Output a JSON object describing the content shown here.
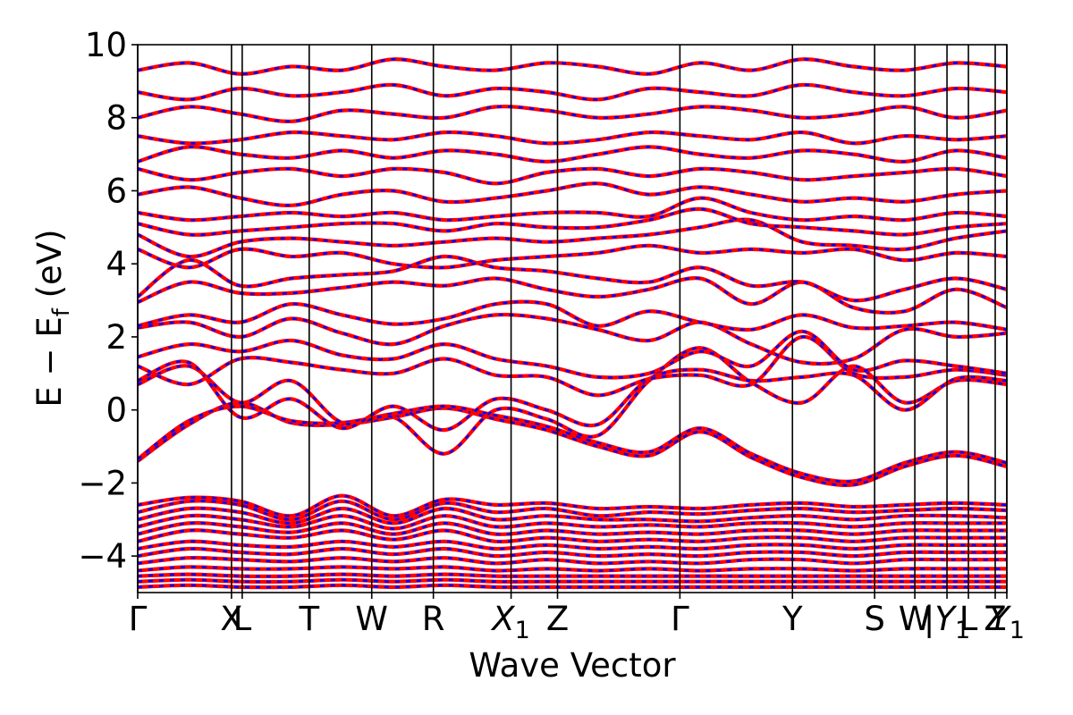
{
  "chart_data": {
    "type": "line",
    "title": "",
    "xlabel": "Wave Vector",
    "ylabel_parts": [
      "E − E",
      "f",
      " (eV)"
    ],
    "ylim": [
      -5,
      10
    ],
    "y_ticks": [
      10,
      8,
      6,
      4,
      2,
      0,
      -2,
      -4
    ],
    "y_tick_labels": [
      "10",
      "8",
      "6",
      "4",
      "2",
      "0",
      "−2",
      "−4"
    ],
    "x_range": [
      0,
      9.73
    ],
    "kpoints": [
      {
        "x": 0.0,
        "label": "Γ"
      },
      {
        "x": 1.05,
        "label": "X"
      },
      {
        "x": 1.17,
        "label": "L"
      },
      {
        "x": 1.92,
        "label": "T"
      },
      {
        "x": 2.62,
        "label": "W"
      },
      {
        "x": 3.31,
        "label": "R"
      },
      {
        "x": 4.18,
        "label": "X",
        "sub": "1"
      },
      {
        "x": 4.7,
        "label": "Z"
      },
      {
        "x": 6.07,
        "label": "Γ"
      },
      {
        "x": 7.33,
        "label": "Y"
      },
      {
        "x": 8.25,
        "label": "S"
      },
      {
        "x": 8.7,
        "label": "W"
      },
      {
        "x": 9.06,
        "label": "|Y",
        "sub": "1"
      },
      {
        "x": 9.3,
        "label": "L"
      },
      {
        "x": 9.6,
        "label": "Z"
      },
      {
        "x": 9.73,
        "label": "Y",
        "sub": "1"
      }
    ],
    "series": [
      {
        "style": "solid",
        "color": "#ff0000"
      },
      {
        "style": "dashed",
        "color": "#0000ff"
      }
    ],
    "bands": [
      {
        "y": [
          -1.4,
          -0.4,
          0.2,
          -0.35,
          -0.4,
          -0.2,
          0.05,
          -0.25,
          -0.55,
          -1.0,
          -1.25,
          -0.6,
          -1.3,
          -1.85,
          -2.05,
          -1.55,
          -1.25,
          -1.55
        ]
      },
      {
        "y": [
          -1.35,
          -0.3,
          0.1,
          -0.3,
          -0.35,
          -0.1,
          0.1,
          -0.15,
          -0.45,
          -0.9,
          -1.15,
          -0.5,
          -1.2,
          -1.75,
          -1.95,
          -1.45,
          -1.15,
          -1.45
        ]
      },
      {
        "y": [
          0.7,
          1.2,
          0.2,
          0.8,
          -0.35,
          -0.2,
          -1.2,
          0.0,
          -0.25,
          -0.7,
          0.8,
          1.7,
          0.75,
          0.2,
          1.2,
          0.2,
          0.8,
          0.7
        ]
      },
      {
        "y": [
          0.8,
          1.3,
          -0.2,
          0.3,
          -0.5,
          0.1,
          -0.55,
          0.3,
          0.0,
          -0.4,
          0.85,
          1.1,
          0.8,
          0.9,
          0.95,
          0.0,
          0.85,
          0.8
        ]
      },
      {
        "y": [
          1.2,
          0.7,
          1.4,
          1.3,
          1.1,
          1.0,
          1.4,
          0.95,
          0.9,
          0.4,
          0.85,
          0.95,
          0.7,
          2.0,
          1.0,
          0.9,
          1.1,
          0.95
        ]
      },
      {
        "y": [
          1.45,
          1.8,
          1.6,
          1.9,
          1.5,
          1.4,
          1.8,
          1.4,
          1.2,
          0.9,
          1.0,
          1.6,
          1.2,
          2.15,
          1.1,
          1.35,
          1.2,
          1.0
        ]
      },
      {
        "y": [
          2.25,
          2.4,
          2.0,
          2.5,
          2.1,
          1.8,
          2.3,
          2.6,
          2.5,
          2.2,
          1.9,
          2.4,
          1.8,
          1.3,
          1.4,
          2.2,
          2.0,
          2.1
        ]
      },
      {
        "y": [
          2.3,
          2.6,
          2.4,
          2.9,
          2.6,
          2.35,
          2.5,
          2.9,
          2.9,
          2.3,
          2.7,
          2.4,
          2.2,
          2.6,
          2.25,
          2.3,
          2.4,
          2.2
        ]
      },
      {
        "y": [
          2.95,
          3.5,
          3.2,
          3.2,
          3.35,
          3.5,
          3.4,
          3.6,
          3.3,
          3.1,
          3.3,
          3.6,
          2.9,
          3.5,
          2.8,
          2.7,
          3.3,
          2.8
        ]
      },
      {
        "y": [
          3.1,
          4.1,
          3.4,
          3.6,
          3.7,
          3.8,
          4.2,
          3.9,
          3.8,
          3.6,
          3.5,
          3.9,
          3.4,
          3.5,
          3.0,
          3.3,
          3.6,
          3.3
        ]
      },
      {
        "y": [
          4.4,
          3.9,
          4.4,
          4.2,
          4.3,
          4.0,
          3.9,
          4.1,
          4.2,
          4.3,
          4.5,
          4.3,
          4.4,
          4.3,
          4.4,
          4.1,
          4.3,
          4.2
        ]
      },
      {
        "y": [
          4.8,
          4.2,
          4.6,
          4.7,
          4.6,
          4.5,
          4.6,
          4.7,
          4.6,
          4.7,
          4.8,
          5.0,
          5.2,
          4.6,
          4.5,
          4.4,
          4.7,
          4.9
        ]
      },
      {
        "y": [
          5.1,
          4.8,
          4.9,
          5.0,
          5.1,
          5.1,
          4.9,
          5.1,
          5.0,
          5.0,
          5.2,
          5.5,
          5.1,
          5.0,
          4.9,
          4.8,
          5.0,
          5.1
        ]
      },
      {
        "y": [
          5.4,
          5.2,
          5.3,
          5.4,
          5.3,
          5.4,
          5.2,
          5.3,
          5.4,
          5.4,
          5.3,
          5.8,
          5.4,
          5.2,
          5.3,
          5.2,
          5.4,
          5.3
        ]
      },
      {
        "y": [
          5.9,
          6.1,
          5.8,
          5.6,
          5.9,
          6.0,
          5.7,
          5.8,
          6.0,
          6.2,
          5.9,
          6.1,
          5.9,
          5.7,
          5.8,
          5.7,
          5.9,
          6.0
        ]
      },
      {
        "y": [
          6.6,
          6.3,
          6.5,
          6.6,
          6.4,
          6.6,
          6.5,
          6.2,
          6.5,
          6.6,
          6.4,
          6.6,
          6.5,
          6.3,
          6.4,
          6.5,
          6.6,
          6.4
        ]
      },
      {
        "y": [
          6.8,
          7.2,
          7.0,
          6.9,
          7.1,
          6.9,
          7.1,
          7.0,
          6.8,
          7.0,
          7.2,
          7.0,
          6.9,
          7.1,
          7.0,
          6.8,
          7.1,
          6.9
        ]
      },
      {
        "y": [
          7.5,
          7.3,
          7.4,
          7.6,
          7.5,
          7.4,
          7.6,
          7.5,
          7.3,
          7.4,
          7.6,
          7.5,
          7.4,
          7.6,
          7.3,
          7.5,
          7.4,
          7.5
        ]
      },
      {
        "y": [
          8.0,
          8.3,
          8.1,
          7.9,
          8.2,
          8.1,
          8.0,
          8.3,
          8.2,
          8.0,
          8.1,
          8.3,
          8.2,
          8.0,
          8.1,
          8.3,
          8.0,
          8.2
        ]
      },
      {
        "y": [
          8.7,
          8.5,
          8.8,
          8.6,
          8.7,
          8.9,
          8.6,
          8.8,
          8.7,
          8.5,
          8.8,
          8.7,
          8.6,
          8.9,
          8.7,
          8.6,
          8.8,
          8.7
        ]
      },
      {
        "y": [
          9.3,
          9.5,
          9.2,
          9.4,
          9.3,
          9.6,
          9.4,
          9.3,
          9.5,
          9.4,
          9.2,
          9.5,
          9.3,
          9.6,
          9.4,
          9.3,
          9.5,
          9.4
        ]
      },
      {
        "y": [
          -2.6,
          -2.4,
          -2.5,
          -2.9,
          -2.35,
          -2.9,
          -2.45,
          -2.6,
          -2.55,
          -2.7,
          -2.65,
          -2.7,
          -2.6,
          -2.55,
          -2.65,
          -2.6,
          -2.55,
          -2.6
        ]
      },
      {
        "y": [
          -2.8,
          -2.5,
          -2.6,
          -3.0,
          -2.5,
          -3.0,
          -2.55,
          -2.8,
          -2.7,
          -2.9,
          -2.8,
          -2.85,
          -2.75,
          -2.7,
          -2.8,
          -2.75,
          -2.7,
          -2.75
        ]
      },
      {
        "y": [
          -3.0,
          -2.7,
          -2.8,
          -3.1,
          -2.7,
          -3.1,
          -2.7,
          -3.0,
          -2.9,
          -3.0,
          -3.0,
          -3.05,
          -2.95,
          -2.9,
          -3.0,
          -2.9,
          -2.9,
          -2.95
        ]
      },
      {
        "y": [
          -3.2,
          -2.9,
          -3.0,
          -3.2,
          -2.9,
          -3.25,
          -2.9,
          -3.2,
          -3.1,
          -3.2,
          -3.15,
          -3.2,
          -3.1,
          -3.1,
          -3.2,
          -3.1,
          -3.1,
          -3.1
        ]
      },
      {
        "y": [
          -3.4,
          -3.1,
          -3.2,
          -3.35,
          -3.1,
          -3.4,
          -3.1,
          -3.4,
          -3.3,
          -3.4,
          -3.35,
          -3.4,
          -3.3,
          -3.3,
          -3.4,
          -3.3,
          -3.3,
          -3.3
        ]
      },
      {
        "y": [
          -3.6,
          -3.3,
          -3.4,
          -3.5,
          -3.3,
          -3.55,
          -3.3,
          -3.6,
          -3.5,
          -3.6,
          -3.55,
          -3.6,
          -3.5,
          -3.5,
          -3.6,
          -3.5,
          -3.5,
          -3.5
        ]
      },
      {
        "y": [
          -3.8,
          -3.6,
          -3.7,
          -3.75,
          -3.6,
          -3.75,
          -3.6,
          -3.8,
          -3.7,
          -3.8,
          -3.75,
          -3.8,
          -3.7,
          -3.7,
          -3.8,
          -3.7,
          -3.7,
          -3.7
        ]
      },
      {
        "y": [
          -4.0,
          -3.8,
          -3.9,
          -3.95,
          -3.8,
          -3.95,
          -3.8,
          -4.0,
          -3.9,
          -4.0,
          -3.95,
          -4.0,
          -3.9,
          -3.9,
          -4.0,
          -3.9,
          -3.9,
          -3.9
        ]
      },
      {
        "y": [
          -4.2,
          -4.05,
          -4.1,
          -4.15,
          -4.05,
          -4.15,
          -4.05,
          -4.2,
          -4.1,
          -4.2,
          -4.15,
          -4.2,
          -4.1,
          -4.1,
          -4.2,
          -4.1,
          -4.1,
          -4.1
        ]
      },
      {
        "y": [
          -4.4,
          -4.3,
          -4.35,
          -4.35,
          -4.3,
          -4.35,
          -4.3,
          -4.4,
          -4.35,
          -4.4,
          -4.35,
          -4.4,
          -4.35,
          -4.35,
          -4.4,
          -4.35,
          -4.35,
          -4.35
        ]
      },
      {
        "y": [
          -4.55,
          -4.5,
          -4.55,
          -4.55,
          -4.5,
          -4.55,
          -4.5,
          -4.55,
          -4.55,
          -4.55,
          -4.55,
          -4.55,
          -4.55,
          -4.55,
          -4.55,
          -4.55,
          -4.55,
          -4.55
        ]
      },
      {
        "y": [
          -4.7,
          -4.65,
          -4.7,
          -4.7,
          -4.65,
          -4.7,
          -4.65,
          -4.7,
          -4.7,
          -4.7,
          -4.7,
          -4.7,
          -4.7,
          -4.7,
          -4.7,
          -4.7,
          -4.7,
          -4.7
        ]
      },
      {
        "y": [
          -4.85,
          -4.8,
          -4.85,
          -4.85,
          -4.8,
          -4.85,
          -4.8,
          -4.85,
          -4.85,
          -4.85,
          -4.85,
          -4.85,
          -4.85,
          -4.85,
          -4.85,
          -4.85,
          -4.85,
          -4.85
        ]
      }
    ]
  }
}
